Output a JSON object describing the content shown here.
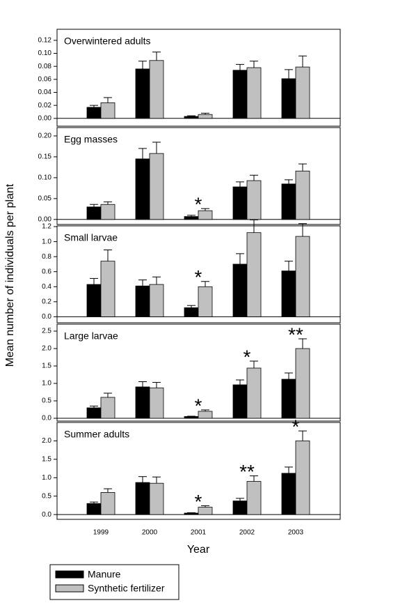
{
  "chart_data": [
    {
      "type": "bar",
      "title": "Overwintered adults",
      "series": [
        {
          "values": [
            0.017,
            0.076,
            0.003,
            0.074,
            0.061
          ],
          "errors": [
            0.003,
            0.012,
            0.001,
            0.009,
            0.014
          ]
        },
        {
          "values": [
            0.024,
            0.089,
            0.006,
            0.078,
            0.079
          ],
          "errors": [
            0.008,
            0.013,
            0.002,
            0.01,
            0.017
          ]
        }
      ],
      "ylim": [
        -0.012,
        0.137
      ],
      "yticks": [
        {
          "value": 0,
          "label": "0.00"
        },
        {
          "value": 0.02,
          "label": "0.02"
        },
        {
          "value": 0.04,
          "label": "0.04"
        },
        {
          "value": 0.06,
          "label": "0.06"
        },
        {
          "value": 0.08,
          "label": "0.08"
        },
        {
          "value": 0.1,
          "label": "0.10"
        },
        {
          "value": 0.12,
          "label": "0.12"
        }
      ],
      "annotations": []
    },
    {
      "type": "bar",
      "title": "Egg masses",
      "series": [
        {
          "values": [
            0.03,
            0.145,
            0.007,
            0.078,
            0.085
          ],
          "errors": [
            0.006,
            0.025,
            0.003,
            0.012,
            0.01
          ]
        },
        {
          "values": [
            0.036,
            0.158,
            0.021,
            0.093,
            0.116
          ],
          "errors": [
            0.006,
            0.027,
            0.005,
            0.013,
            0.017
          ]
        }
      ],
      "ylim": [
        -0.012,
        0.22
      ],
      "yticks": [
        {
          "value": 0,
          "label": "0.00"
        },
        {
          "value": 0.05,
          "label": "0.05"
        },
        {
          "value": 0.1,
          "label": "0.10"
        },
        {
          "value": 0.15,
          "label": "0.15"
        },
        {
          "value": 0.2,
          "label": "0.20"
        }
      ],
      "annotations": [
        {
          "text": "*",
          "x": "2001"
        }
      ]
    },
    {
      "type": "bar",
      "title": "Small larvae",
      "series": [
        {
          "values": [
            0.43,
            0.41,
            0.12,
            0.7,
            0.61
          ],
          "errors": [
            0.08,
            0.08,
            0.03,
            0.14,
            0.13
          ]
        },
        {
          "values": [
            0.74,
            0.43,
            0.4,
            1.12,
            1.07
          ],
          "errors": [
            0.15,
            0.1,
            0.07,
            0.17,
            0.17
          ]
        }
      ],
      "ylim": [
        -0.08,
        1.21
      ],
      "yticks": [
        {
          "value": 0,
          "label": "0.0"
        },
        0.2,
        0.4,
        0.6,
        0.8,
        {
          "value": 1,
          "label": "1.0"
        },
        1.2
      ],
      "annotations": [
        {
          "text": "*",
          "x": "2001"
        }
      ]
    },
    {
      "type": "bar",
      "title": "Large larvae",
      "series": [
        {
          "values": [
            0.3,
            0.9,
            0.05,
            0.96,
            1.12
          ],
          "errors": [
            0.05,
            0.15,
            0.01,
            0.14,
            0.18
          ]
        },
        {
          "values": [
            0.6,
            0.87,
            0.2,
            1.44,
            2.0
          ],
          "errors": [
            0.12,
            0.16,
            0.04,
            0.2,
            0.28
          ]
        }
      ],
      "ylim": [
        -0.08,
        2.7
      ],
      "yticks": [
        {
          "value": 0,
          "label": "0.0"
        },
        0.5,
        {
          "value": 1,
          "label": "1.0"
        },
        1.5,
        {
          "value": 2,
          "label": "2.0"
        },
        2.5
      ],
      "annotations": [
        {
          "text": "*",
          "x": "2001"
        },
        {
          "text": "*",
          "x": "2002"
        },
        {
          "text": "**",
          "x": "2003"
        }
      ]
    },
    {
      "type": "bar",
      "title": "Summer adults",
      "series": [
        {
          "values": [
            0.3,
            0.87,
            0.04,
            0.37,
            1.12
          ],
          "errors": [
            0.04,
            0.16,
            0.01,
            0.07,
            0.17
          ]
        },
        {
          "values": [
            0.6,
            0.85,
            0.2,
            0.9,
            2.0
          ],
          "errors": [
            0.1,
            0.17,
            0.04,
            0.15,
            0.27
          ]
        }
      ],
      "ylim": [
        -0.13,
        2.5
      ],
      "yticks": [
        {
          "value": 0,
          "label": "0.0"
        },
        0.5,
        {
          "value": 1,
          "label": "1.0"
        },
        1.5,
        {
          "value": 2,
          "label": "2.0"
        }
      ],
      "annotations": [
        {
          "text": "*",
          "x": "2001"
        },
        {
          "text": "**",
          "x": "2002"
        },
        {
          "text": "*",
          "x": "2003"
        }
      ]
    }
  ],
  "shared": {
    "y_label": "Mean number of individuals per plant",
    "x_label": "Year",
    "categories": [
      "1999",
      "2000",
      "2001",
      "2002",
      "2003"
    ],
    "legend": [
      {
        "name": "Manure",
        "color": "#000000"
      },
      {
        "name": "Synthetic fertilizer",
        "color": "#c0c0c0"
      }
    ]
  }
}
